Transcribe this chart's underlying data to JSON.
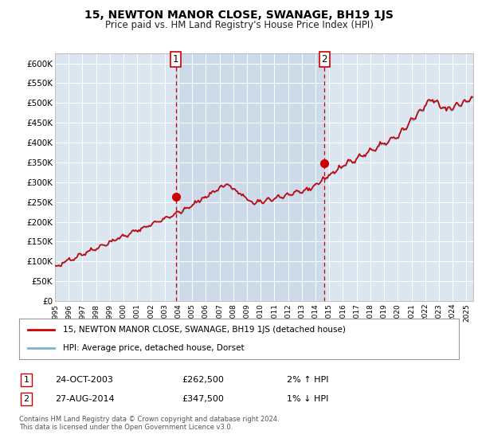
{
  "title": "15, NEWTON MANOR CLOSE, SWANAGE, BH19 1JS",
  "subtitle": "Price paid vs. HM Land Registry's House Price Index (HPI)",
  "background_color": "#ffffff",
  "plot_bg_color": "#dce6f1",
  "highlight_bg": "#ccdaea",
  "ylabel_ticks": [
    "£0",
    "£50K",
    "£100K",
    "£150K",
    "£200K",
    "£250K",
    "£300K",
    "£350K",
    "£400K",
    "£450K",
    "£500K",
    "£550K",
    "£600K"
  ],
  "ytick_vals": [
    0,
    50000,
    100000,
    150000,
    200000,
    250000,
    300000,
    350000,
    400000,
    450000,
    500000,
    550000,
    600000
  ],
  "ylim": [
    0,
    625000
  ],
  "xlim_start": 1995.0,
  "xlim_end": 2025.5,
  "sale1_x": 2003.81,
  "sale1_y": 262500,
  "sale2_x": 2014.65,
  "sale2_y": 347500,
  "sale1_label": "1",
  "sale2_label": "2",
  "sale1_date": "24-OCT-2003",
  "sale1_price": "£262,500",
  "sale1_hpi": "2% ↑ HPI",
  "sale2_date": "27-AUG-2014",
  "sale2_price": "£347,500",
  "sale2_hpi": "1% ↓ HPI",
  "legend_line1": "15, NEWTON MANOR CLOSE, SWANAGE, BH19 1JS (detached house)",
  "legend_line2": "HPI: Average price, detached house, Dorset",
  "footer": "Contains HM Land Registry data © Crown copyright and database right 2024.\nThis data is licensed under the Open Government Licence v3.0.",
  "hpi_color": "#7ab3d4",
  "price_color": "#cc0000",
  "dashed_color": "#cc0000",
  "grid_color": "#ffffff",
  "xtick_years": [
    1995,
    1996,
    1997,
    1998,
    1999,
    2000,
    2001,
    2002,
    2003,
    2004,
    2005,
    2006,
    2007,
    2008,
    2009,
    2010,
    2011,
    2012,
    2013,
    2014,
    2015,
    2016,
    2017,
    2018,
    2019,
    2020,
    2021,
    2022,
    2023,
    2024,
    2025
  ]
}
